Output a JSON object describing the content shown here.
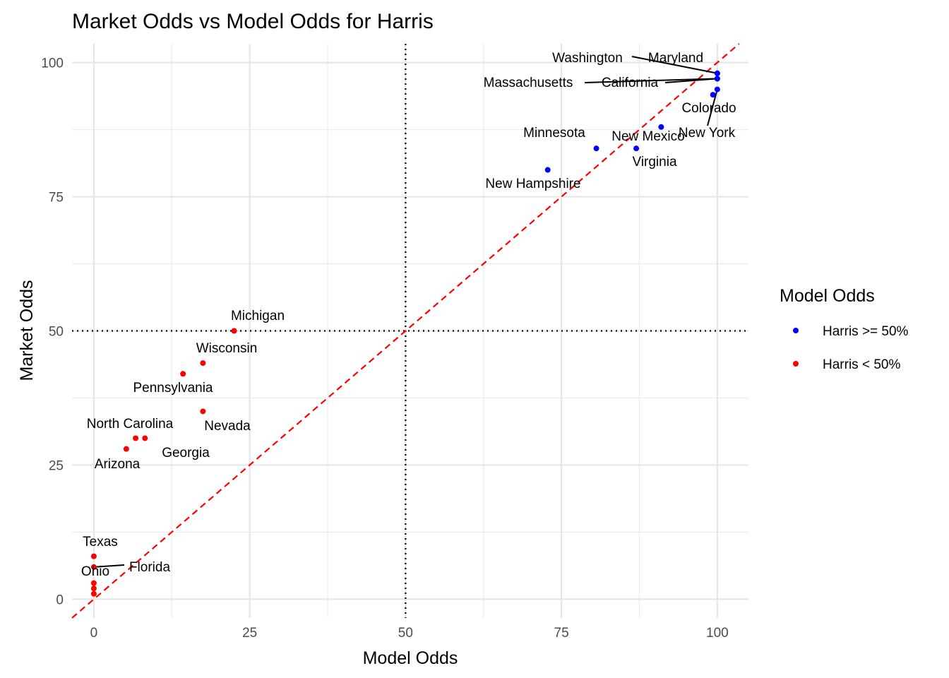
{
  "chart_data": {
    "type": "scatter",
    "title": "Market Odds vs Model Odds for Harris",
    "xlabel": "Model Odds",
    "ylabel": "Market Odds",
    "xlim": [
      -3.5,
      105
    ],
    "ylim": [
      -3.5,
      103.5
    ],
    "x_ticks": [
      0,
      25,
      50,
      75,
      100
    ],
    "y_ticks": [
      0,
      25,
      50,
      75,
      100
    ],
    "grid": true,
    "reference_lines": {
      "vertical_x": 50,
      "horizontal_y": 50,
      "diagonal": "y = x",
      "diagonal_color": "#ff0000"
    },
    "legend": {
      "title": "Model Odds",
      "placement": "right",
      "entries": [
        {
          "label": "Harris >= 50%",
          "color": "#0000ff"
        },
        {
          "label": "Harris < 50%",
          "color": "#ff0000"
        }
      ]
    },
    "series": [
      {
        "name": "Harris >= 50%",
        "color": "#0000ff",
        "points": [
          {
            "label": "Washington",
            "x": 100,
            "y": 98
          },
          {
            "label": "Maryland",
            "x": 100,
            "y": 98
          },
          {
            "label": "Massachusetts",
            "x": 100,
            "y": 97
          },
          {
            "label": "California",
            "x": 100,
            "y": 97
          },
          {
            "label": "Colorado",
            "x": 99.3,
            "y": 94
          },
          {
            "label": "New York",
            "x": 100,
            "y": 95
          },
          {
            "label": "Minnesota",
            "x": 80.6,
            "y": 84
          },
          {
            "label": "New Mexico",
            "x": 91,
            "y": 88
          },
          {
            "label": "Virginia",
            "x": 87,
            "y": 84
          },
          {
            "label": "New Hampshire",
            "x": 72.8,
            "y": 80
          }
        ]
      },
      {
        "name": "Harris < 50%",
        "color": "#ff0000",
        "points": [
          {
            "label": "Michigan",
            "x": 22.5,
            "y": 50
          },
          {
            "label": "Wisconsin",
            "x": 17.5,
            "y": 44
          },
          {
            "label": "Pennsylvania",
            "x": 14.3,
            "y": 42
          },
          {
            "label": "Nevada",
            "x": 17.5,
            "y": 35
          },
          {
            "label": "North Carolina",
            "x": 6.7,
            "y": 30
          },
          {
            "label": "Georgia",
            "x": 8.2,
            "y": 30
          },
          {
            "label": "Arizona",
            "x": 5.2,
            "y": 28
          },
          {
            "label": "Texas",
            "x": 0,
            "y": 8
          },
          {
            "label": "Florida",
            "x": 0,
            "y": 6
          },
          {
            "label": "Ohio",
            "x": 0,
            "y": 3
          },
          {
            "label": "",
            "x": 0,
            "y": 2
          },
          {
            "label": "",
            "x": 0,
            "y": 1
          }
        ]
      }
    ]
  }
}
